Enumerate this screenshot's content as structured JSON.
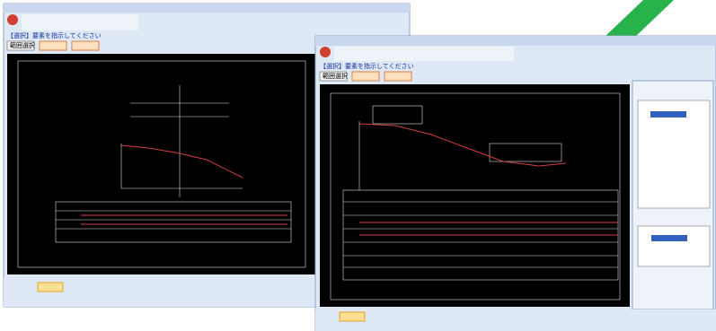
{
  "window_1": {
    "prompt": "【選択】要素を指示してください",
    "button": "範囲選択"
  },
  "window_2": {
    "prompt": "【選択】要素を指示してください",
    "button": "範囲選択"
  }
}
